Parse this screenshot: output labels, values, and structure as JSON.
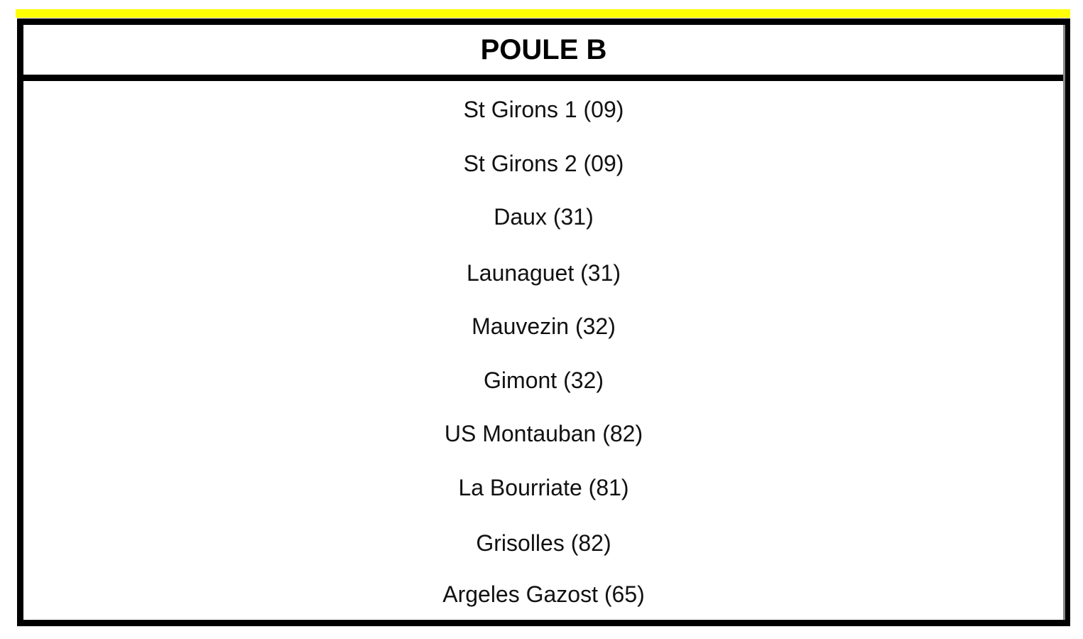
{
  "accent_color": "#ffff00",
  "title": "POULE B",
  "teams": [
    "St Girons 1 (09)",
    "St Girons 2 (09)",
    "Daux (31)",
    "Launaguet (31)",
    "Mauvezin (32)",
    "Gimont (32)",
    "US Montauban (82)",
    "La Bourriate (81)",
    "Grisolles (82)",
    "Argeles Gazost (65)"
  ]
}
